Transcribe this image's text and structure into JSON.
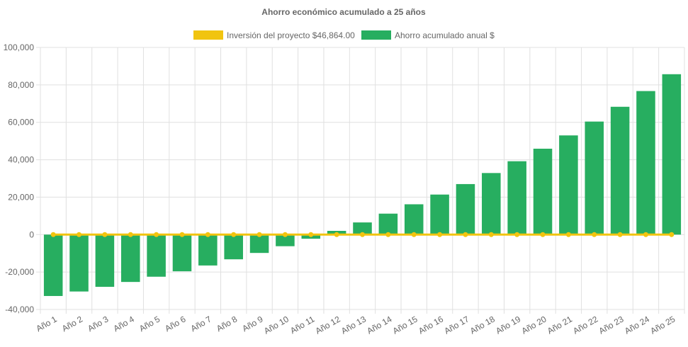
{
  "chart_data": {
    "type": "bar",
    "title": "Ahorro económico acumulado a 25 años",
    "categories": [
      "Año 1",
      "Año 2",
      "Año 3",
      "Año 4",
      "Año 5",
      "Año 6",
      "Año 7",
      "Año 8",
      "Año 9",
      "Año 10",
      "Año 11",
      "Año 12",
      "Año 13",
      "Año 14",
      "Año 15",
      "Año 16",
      "Año 17",
      "Año 18",
      "Año 19",
      "Año 20",
      "Año 21",
      "Año 22",
      "Año 23",
      "Año 24",
      "Año 25"
    ],
    "series": [
      {
        "name": "Inversión del proyecto $46,864.00",
        "kind": "line",
        "color": "#f1c40f",
        "values": [
          0,
          0,
          0,
          0,
          0,
          0,
          0,
          0,
          0,
          0,
          0,
          0,
          0,
          0,
          0,
          0,
          0,
          0,
          0,
          0,
          0,
          0,
          0,
          0,
          0
        ]
      },
      {
        "name": "Ahorro acumulado anual $",
        "kind": "bar",
        "color": "#27ae60",
        "values": [
          -32800,
          -30400,
          -27900,
          -25300,
          -22500,
          -19600,
          -16500,
          -13200,
          -9800,
          -6200,
          -2200,
          2000,
          6500,
          11200,
          16200,
          21400,
          27000,
          32900,
          39200,
          45900,
          53000,
          60400,
          68300,
          76700,
          85700
        ]
      }
    ],
    "ylim": [
      -40000,
      100000
    ],
    "yticks": [
      -40000,
      -20000,
      0,
      20000,
      40000,
      60000,
      80000,
      100000
    ],
    "ytick_labels": [
      "-40,000",
      "-20,000",
      "0",
      "20,000",
      "40,000",
      "60,000",
      "80,000",
      "100,000"
    ],
    "xlabel": "",
    "ylabel": "",
    "grid": true,
    "legend_position": "top"
  }
}
